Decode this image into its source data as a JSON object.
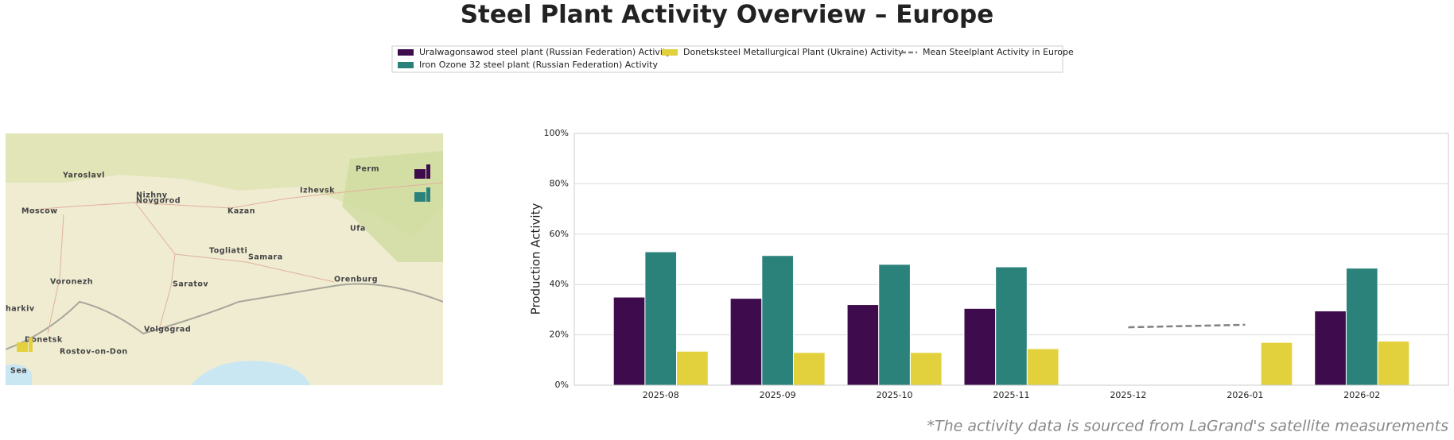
{
  "chart_data": {
    "type": "bar",
    "title": "Steel Plant Activity Overview – Europe",
    "ylabel": "Production Activity",
    "footnote": "*The activity data is sourced from LaGrand's satellite measurements",
    "categories": [
      "2025-08",
      "2025-09",
      "2025-10",
      "2025-11",
      "2025-12",
      "2026-01",
      "2026-02"
    ],
    "series": [
      {
        "name": "Uralwagonsawod steel plant (Russian Federation) Activity",
        "color": "#3e0b4c",
        "values": [
          35,
          34.5,
          32,
          30.5,
          null,
          null,
          29.5
        ]
      },
      {
        "name": "Iron Ozone 32 steel plant (Russian Federation) Activity",
        "color": "#2b827b",
        "values": [
          53,
          51.5,
          48,
          47,
          null,
          null,
          46.5
        ]
      },
      {
        "name": "Donetsksteel Metallurgical Plant (Ukraine) Activity",
        "color": "#e2d13c",
        "values": [
          13.5,
          13,
          13,
          14.5,
          null,
          17,
          17.5
        ]
      },
      {
        "name": "Mean Steelplant Activity in Europe",
        "color": "#808080",
        "type": "line",
        "dashed": true,
        "values": [
          null,
          null,
          null,
          null,
          23,
          24,
          null
        ]
      }
    ],
    "ylim": [
      0,
      100
    ],
    "yticks": [
      {
        "value": 0,
        "label": "0%"
      },
      {
        "value": 20,
        "label": "20%"
      },
      {
        "value": 40,
        "label": "40%"
      },
      {
        "value": 60,
        "label": "60%"
      },
      {
        "value": 80,
        "label": "80%"
      },
      {
        "value": 100,
        "label": "100%"
      }
    ],
    "grid": true,
    "legend": "top",
    "map_labels": [
      "Yaroslavl",
      "Nizhny",
      "Novgorod",
      "Moscow",
      "Kazan",
      "Izhevsk",
      "Perm",
      "Ufa",
      "Togliatti",
      "Samara",
      "Voronezh",
      "Saratov",
      "Orenburg",
      "Volgograd",
      "Donetsk",
      "Rostov-on-Don",
      "harkiv",
      "Sea"
    ]
  }
}
